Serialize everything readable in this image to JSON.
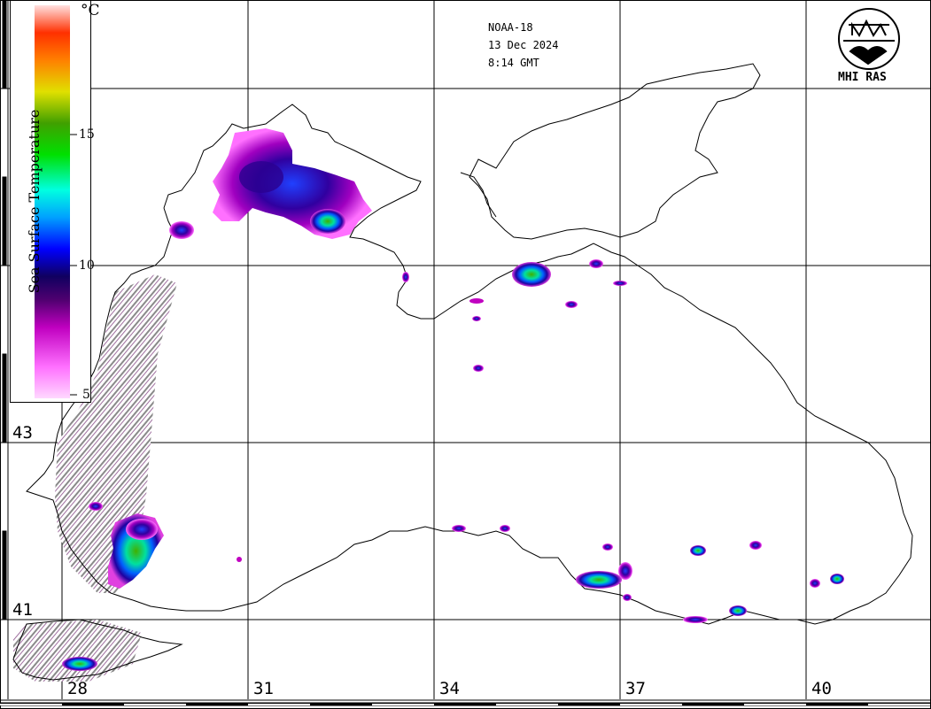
{
  "header": {
    "satellite": "NOAA-18",
    "date": "13 Dec 2024",
    "time": "8:14 GMT"
  },
  "logo": {
    "text": "MHI RAS",
    "icon": "mhi-ras-emblem-icon"
  },
  "legend": {
    "title": "Sea Surface Temperature",
    "unit": "°C",
    "ticks": [
      "15",
      "10",
      "5"
    ],
    "colors": [
      "#ff7fff",
      "#c000c0",
      "#300080",
      "#0000ff",
      "#00b0ff",
      "#00ffd0",
      "#00d000",
      "#40a000",
      "#ffff00",
      "#ff9000",
      "#ff2000",
      "#ffb0b0"
    ]
  },
  "grid": {
    "latitudes": [
      "43",
      "41"
    ],
    "longitudes": [
      "28",
      "31",
      "34",
      "37",
      "40"
    ]
  }
}
